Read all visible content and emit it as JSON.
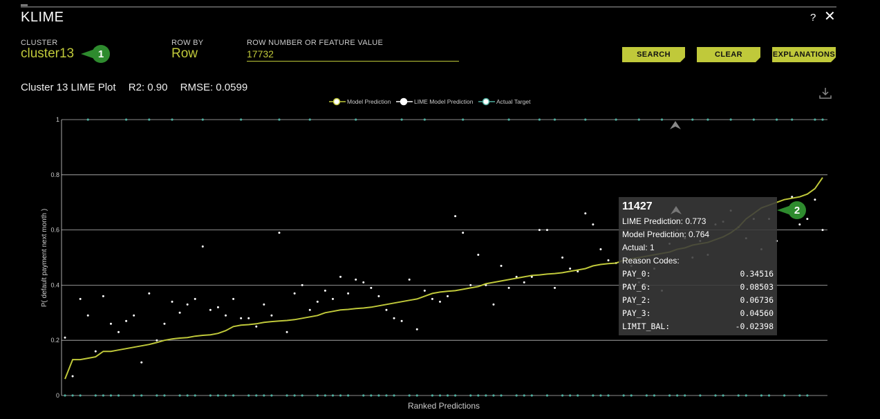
{
  "app": {
    "title": "KLIME"
  },
  "header_icons": {
    "help": "?",
    "close": "✕"
  },
  "controls": {
    "cluster_label": "CLUSTER",
    "cluster_value": "cluster13",
    "row_by_label": "ROW BY",
    "row_by_value": "Row",
    "row_number_label": "ROW NUMBER OR FEATURE VALUE",
    "row_number_value": "17732",
    "buttons": {
      "search": "SEARCH",
      "clear": "CLEAR",
      "explanations": "EXPLANATIONS"
    }
  },
  "annotations": {
    "badge1": "1",
    "badge2": "2"
  },
  "plot_header": {
    "title": "Cluster 13 LIME Plot",
    "r2": "R2: 0.90",
    "rmse": "RMSE: 0.0599"
  },
  "colors": {
    "accent": "#c0c93a",
    "badge": "#2e8b2e",
    "target": "#4fb0a0",
    "grid": "#dddddd"
  },
  "tooltip": {
    "row_id": "11427",
    "lime_prediction": "LIME Prediction: 0.773",
    "model_prediction": "Model Prediction: 0.764",
    "actual": "Actual: 1",
    "reason_codes_label": "Reason Codes:",
    "reason_codes": [
      {
        "name": "PAY_0:",
        "value": "0.34516"
      },
      {
        "name": "PAY_6:",
        "value": "0.08503"
      },
      {
        "name": "PAY_2:",
        "value": "0.06736"
      },
      {
        "name": "PAY_3:",
        "value": "0.04560"
      },
      {
        "name": "LIMIT_BAL:",
        "value": "-0.02398"
      }
    ]
  },
  "chart_data": {
    "type": "line",
    "title": "Cluster 13 LIME Plot",
    "xlabel": "Ranked Predictions",
    "ylabel": "P( default payment next month )",
    "ylim": [
      0,
      1
    ],
    "yticks": [
      0,
      0.2,
      0.4,
      0.6,
      0.8,
      1
    ],
    "n_points": 100,
    "legend": [
      "Model Prediction",
      "LIME Model Prediction",
      "Actual Target"
    ],
    "legend_position": "top-center",
    "model_prediction": [
      0.06,
      0.13,
      0.13,
      0.135,
      0.14,
      0.16,
      0.16,
      0.165,
      0.17,
      0.175,
      0.18,
      0.185,
      0.192,
      0.2,
      0.205,
      0.208,
      0.21,
      0.215,
      0.218,
      0.22,
      0.225,
      0.235,
      0.25,
      0.255,
      0.257,
      0.26,
      0.265,
      0.268,
      0.27,
      0.272,
      0.275,
      0.28,
      0.285,
      0.29,
      0.3,
      0.305,
      0.31,
      0.312,
      0.315,
      0.317,
      0.32,
      0.325,
      0.33,
      0.335,
      0.34,
      0.345,
      0.35,
      0.36,
      0.37,
      0.375,
      0.378,
      0.38,
      0.385,
      0.39,
      0.395,
      0.405,
      0.41,
      0.415,
      0.42,
      0.425,
      0.43,
      0.435,
      0.437,
      0.44,
      0.442,
      0.445,
      0.45,
      0.455,
      0.46,
      0.47,
      0.475,
      0.478,
      0.48,
      0.49,
      0.495,
      0.5,
      0.505,
      0.51,
      0.515,
      0.52,
      0.53,
      0.535,
      0.545,
      0.55,
      0.555,
      0.565,
      0.575,
      0.59,
      0.61,
      0.64,
      0.66,
      0.68,
      0.69,
      0.7,
      0.71,
      0.715,
      0.72,
      0.73,
      0.75,
      0.79
    ],
    "lime_prediction": [
      0.21,
      0.07,
      0.35,
      0.29,
      0.16,
      0.36,
      0.26,
      0.23,
      0.27,
      0.29,
      0.12,
      0.37,
      0.2,
      0.26,
      0.34,
      0.3,
      0.33,
      0.35,
      0.54,
      0.31,
      0.32,
      0.29,
      0.35,
      0.28,
      0.28,
      0.25,
      0.33,
      0.29,
      0.59,
      0.23,
      0.37,
      0.4,
      0.31,
      0.34,
      0.38,
      0.35,
      0.43,
      0.37,
      0.42,
      0.41,
      0.39,
      0.36,
      0.31,
      0.28,
      0.27,
      0.42,
      0.24,
      0.38,
      0.35,
      0.34,
      0.36,
      0.65,
      0.59,
      0.4,
      0.51,
      0.4,
      0.33,
      0.47,
      0.39,
      0.43,
      0.41,
      0.43,
      0.6,
      0.6,
      0.39,
      0.5,
      0.46,
      0.45,
      0.66,
      0.62,
      0.53,
      0.49,
      0.48,
      0.4,
      0.47,
      0.41,
      0.4,
      0.46,
      0.38,
      0.55,
      0.6,
      0.57,
      0.5,
      0.56,
      0.51,
      0.62,
      0.63,
      0.67,
      0.61,
      0.57,
      0.64,
      0.53,
      0.64,
      0.56,
      0.67,
      0.72,
      0.62,
      0.64,
      0.71,
      0.6
    ],
    "actual_target": [
      0,
      0,
      0,
      1,
      0,
      0,
      0,
      0,
      1,
      0,
      0,
      1,
      0,
      0,
      1,
      0,
      0,
      0,
      1,
      0,
      0,
      0,
      0,
      1,
      0,
      0,
      0,
      0,
      1,
      0,
      0,
      0,
      1,
      0,
      0,
      0,
      0,
      0,
      1,
      0,
      0,
      0,
      0,
      0,
      1,
      0,
      0,
      1,
      0,
      0,
      0,
      0,
      1,
      0,
      0,
      0,
      0,
      0,
      1,
      0,
      0,
      0,
      1,
      0,
      1,
      0,
      0,
      0,
      1,
      0,
      0,
      0,
      1,
      0,
      0,
      1,
      0,
      0,
      1,
      0,
      0,
      0,
      1,
      0,
      1,
      0,
      0,
      1,
      0,
      0,
      1,
      0,
      0,
      1,
      0,
      1,
      0,
      0,
      1,
      1
    ]
  }
}
